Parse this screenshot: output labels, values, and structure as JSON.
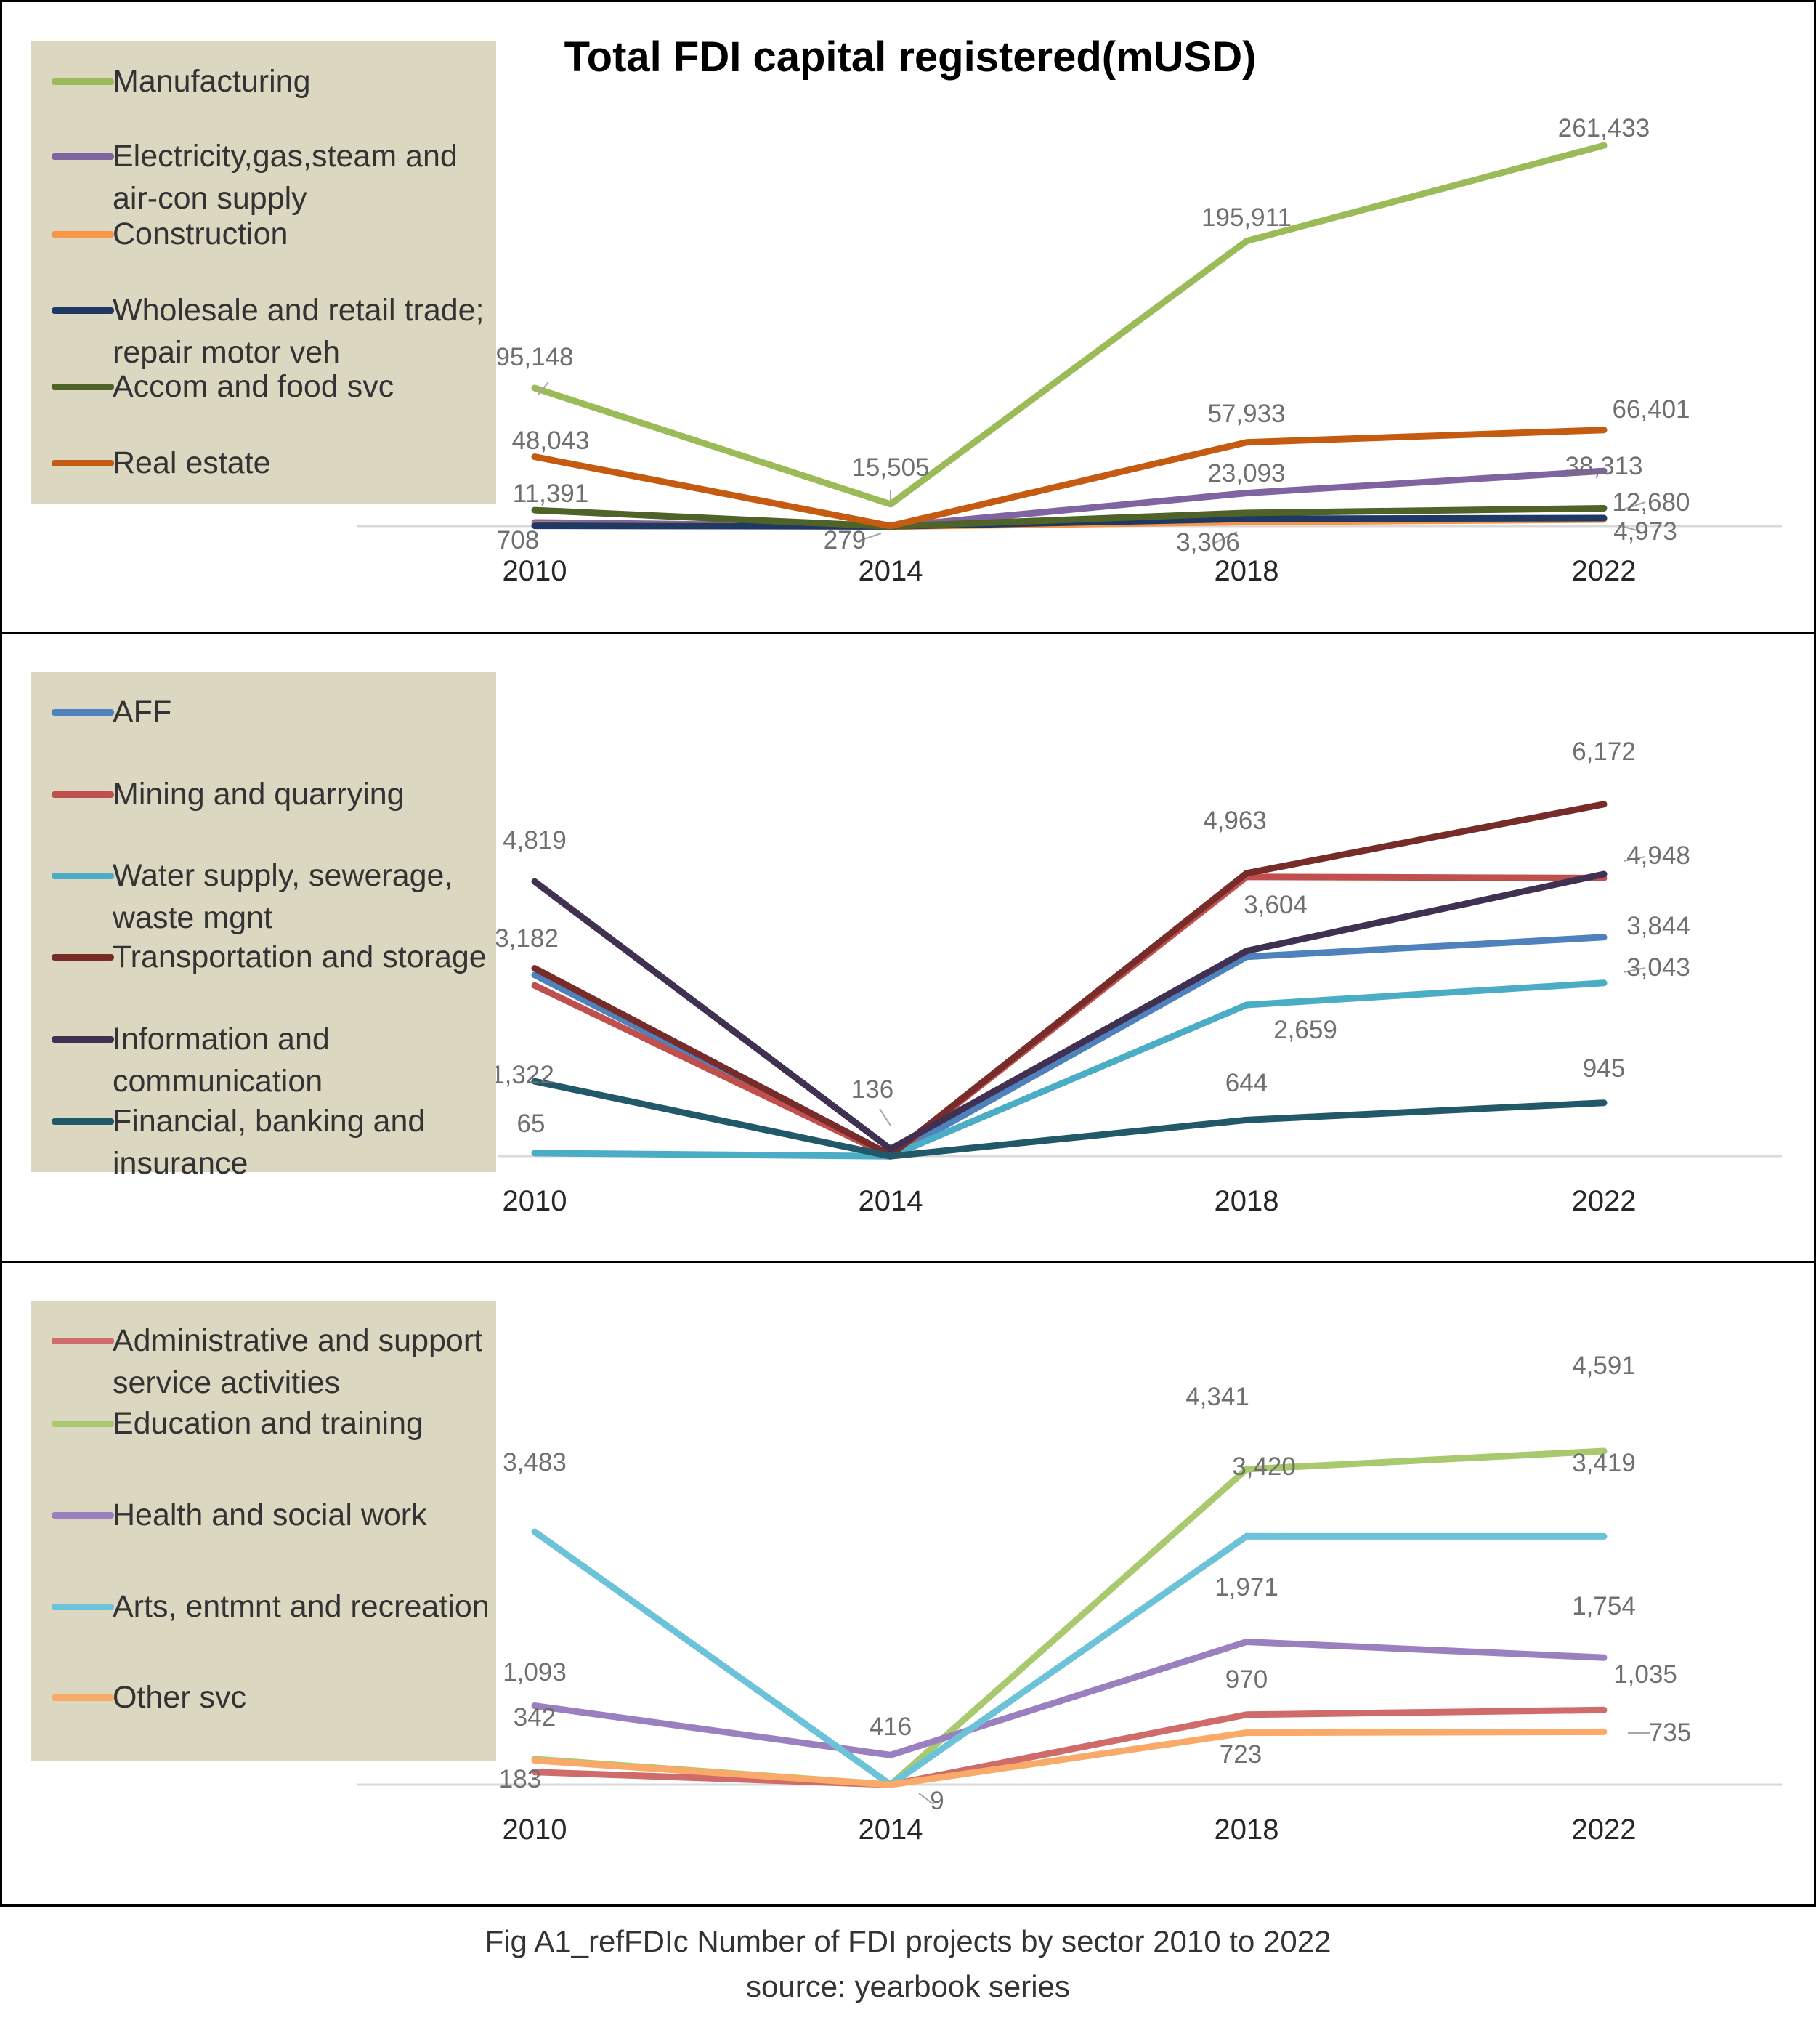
{
  "chart_data": [
    {
      "type": "line",
      "title": "Total FDI capital registered(mUSD)",
      "x": [
        "2010",
        "2014",
        "2018",
        "2022"
      ],
      "ylim": [
        0,
        270000
      ],
      "legend": "left",
      "grid": false,
      "series": [
        {
          "name": "Manufacturing",
          "color": "#9bbb59",
          "values": [
            95148,
            15505,
            195911,
            261433
          ],
          "labels": [
            "95,148",
            "15,505",
            "195,911",
            "261,433"
          ]
        },
        {
          "name": "Electricity,gas,steam and air-con supply",
          "color": "#8064a2",
          "values": [
            3000,
            200,
            23093,
            38313
          ],
          "labels": [
            "",
            "",
            "23,093",
            "38,313"
          ]
        },
        {
          "name": "Construction",
          "color": "#f79646",
          "values": [
            1500,
            150,
            3306,
            4973
          ],
          "labels": [
            "",
            "",
            "3,306",
            "4,973"
          ]
        },
        {
          "name": "Wholesale and retail trade; repair motor veh",
          "color": "#1f3864",
          "values": [
            708,
            279,
            5500,
            6000
          ],
          "labels": [
            "708",
            "279",
            "",
            ""
          ]
        },
        {
          "name": "Accom and food svc",
          "color": "#4f6228",
          "values": [
            11391,
            300,
            9500,
            12680
          ],
          "labels": [
            "11,391",
            "",
            "",
            "12,680"
          ]
        },
        {
          "name": "Real estate",
          "color": "#c55a11",
          "values": [
            48043,
            600,
            57933,
            66401
          ],
          "labels": [
            "48,043",
            "",
            "57,933",
            "66,401"
          ]
        }
      ]
    },
    {
      "type": "line",
      "x": [
        "2010",
        "2014",
        "2018",
        "2022"
      ],
      "ylim": [
        0,
        6500
      ],
      "legend": "left",
      "grid": false,
      "series": [
        {
          "name": "AFF",
          "color": "#4f81bd",
          "values": [
            3182,
            10,
            3500,
            3844
          ],
          "labels": [
            "3,182",
            "",
            "",
            "3,844"
          ]
        },
        {
          "name": "Mining and quarrying",
          "color": "#c0504d",
          "values": [
            3000,
            10,
            4900,
            4880
          ],
          "labels": [
            "",
            "",
            "",
            ""
          ]
        },
        {
          "name": "Water supply, sewerage, waste mgnt",
          "color": "#4bacc6",
          "values": [
            65,
            10,
            2659,
            3043
          ],
          "labels": [
            "65",
            "",
            "2,659",
            "3,043"
          ]
        },
        {
          "name": "Transportation and storage",
          "color": "#772c2a",
          "values": [
            3300,
            30,
            4963,
            6172
          ],
          "labels": [
            "",
            "",
            "4,963",
            "6,172"
          ]
        },
        {
          "name": "Information and communication",
          "color": "#403152",
          "values": [
            4819,
            136,
            3604,
            4948
          ],
          "labels": [
            "4,819",
            "136",
            "3,604",
            "4,948"
          ]
        },
        {
          "name": "Financial, banking and insurance",
          "color": "#215968",
          "values": [
            1322,
            10,
            644,
            945
          ],
          "labels": [
            "1,322",
            "",
            "644",
            "945"
          ]
        }
      ]
    },
    {
      "type": "line",
      "x": [
        "2010",
        "2014",
        "2018",
        "2022"
      ],
      "ylim": [
        0,
        5000
      ],
      "legend": "left",
      "grid": false,
      "series": [
        {
          "name": "Administrative and support service activities",
          "color": "#d06b6b",
          "values": [
            183,
            9,
            970,
            1035
          ],
          "labels": [
            "183",
            "9",
            "970",
            "1,035"
          ]
        },
        {
          "name": "Education and training",
          "color": "#a9c96f",
          "values": [
            360,
            9,
            4341,
            4591
          ],
          "labels": [
            "",
            "",
            "4,341",
            "4,591"
          ]
        },
        {
          "name": "Health and social work",
          "color": "#9b80c0",
          "values": [
            1093,
            416,
            1971,
            1754
          ],
          "labels": [
            "1,093",
            "416",
            "1,971",
            "1,754"
          ]
        },
        {
          "name": "Arts, entmnt and recreation",
          "color": "#6cc2d8",
          "values": [
            3483,
            9,
            3420,
            3419
          ],
          "labels": [
            "3,483",
            "",
            "3,420",
            "3,419"
          ]
        },
        {
          "name": "Other svc",
          "color": "#f9a968",
          "values": [
            342,
            9,
            723,
            735
          ],
          "labels": [
            "342",
            "",
            "723",
            "735"
          ]
        }
      ]
    }
  ],
  "caption": {
    "line1": "Fig A1_refFDIc Number of FDI projects by sector 2010 to 2022",
    "line2": "source: yearbook series"
  }
}
